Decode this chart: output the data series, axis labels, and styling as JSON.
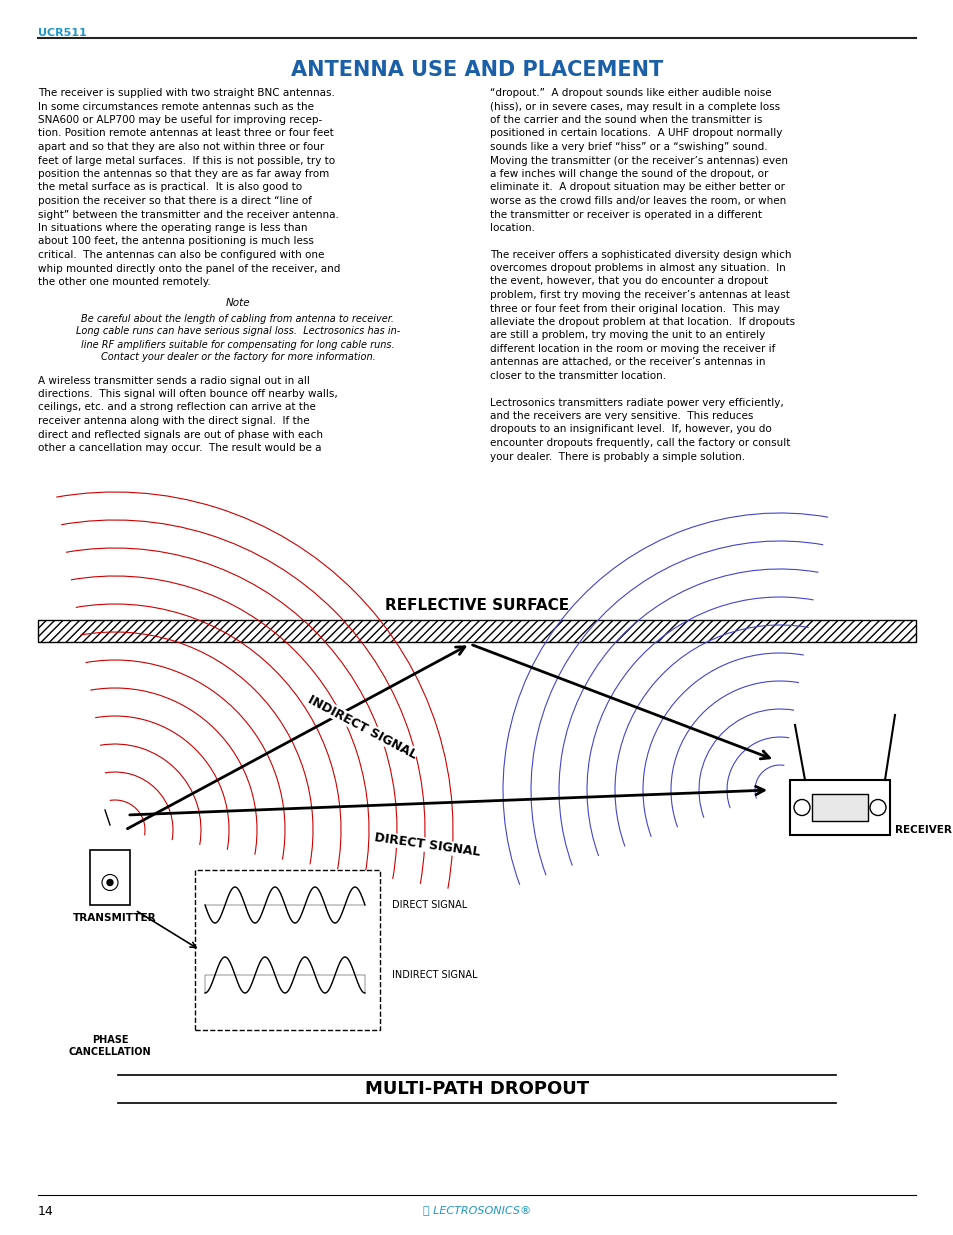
{
  "page_header": "UCR511",
  "title": "ANTENNA USE AND PLACEMENT",
  "header_color": "#2196C8",
  "title_color": "#1a5fa8",
  "body_color": "#000000",
  "background": "#ffffff",
  "left_col_text": [
    "The receiver is supplied with two straight BNC antennas.",
    "In some circumstances remote antennas such as the",
    "SNA600 or ALP700 may be useful for improving recep-",
    "tion. Position remote antennas at least three or four feet",
    "apart and so that they are also not within three or four",
    "feet of large metal surfaces.  If this is not possible, try to",
    "position the antennas so that they are as far away from",
    "the metal surface as is practical.  It is also good to",
    "position the receiver so that there is a direct “line of",
    "sight” between the transmitter and the receiver antenna.",
    "In situations where the operating range is less than",
    "about 100 feet, the antenna positioning is much less",
    "critical.  The antennas can also be configured with one",
    "whip mounted directly onto the panel of the receiver, and",
    "the other one mounted remotely."
  ],
  "note_title": "Note",
  "note_text": [
    "Be careful about the length of cabling from antenna to receiver.",
    "Long cable runs can have serious signal loss.  Lectrosonics has in-",
    "line RF amplifiers suitable for compensating for long cable runs.",
    "Contact your dealer or the factory for more information."
  ],
  "left_col_text2": [
    "A wireless transmitter sends a radio signal out in all",
    "directions.  This signal will often bounce off nearby walls,",
    "ceilings, etc. and a strong reflection can arrive at the",
    "receiver antenna along with the direct signal.  If the",
    "direct and reflected signals are out of phase with each",
    "other a cancellation may occur.  The result would be a"
  ],
  "right_col_text": [
    "“dropout.”  A dropout sounds like either audible noise",
    "(hiss), or in severe cases, may result in a complete loss",
    "of the carrier and the sound when the transmitter is",
    "positioned in certain locations.  A UHF dropout normally",
    "sounds like a very brief “hiss” or a “swishing” sound.",
    "Moving the transmitter (or the receiver’s antennas) even",
    "a few inches will change the sound of the dropout, or",
    "eliminate it.  A dropout situation may be either better or",
    "worse as the crowd fills and/or leaves the room, or when",
    "the transmitter or receiver is operated in a different",
    "location."
  ],
  "right_col_text2": [
    "The receiver offers a sophisticated diversity design which",
    "overcomes dropout problems in almost any situation.  In",
    "the event, however, that you do encounter a dropout",
    "problem, first try moving the receiver’s antennas at least",
    "three or four feet from their original location.  This may",
    "alleviate the dropout problem at that location.  If dropouts",
    "are still a problem, try moving the unit to an entirely",
    "different location in the room or moving the receiver if",
    "antennas are attached, or the receiver’s antennas in",
    "closer to the transmitter location."
  ],
  "right_col_text3": [
    "Lectrosonics transmitters radiate power very efficiently,",
    "and the receivers are very sensitive.  This reduces",
    "dropouts to an insignificant level.  If, however, you do",
    "encounter dropouts frequently, call the factory or consult",
    "your dealer.  There is probably a simple solution."
  ],
  "diagram_title": "REFLECTIVE SURFACE",
  "diagram_bottom_title": "MULTI-PATH DROPOUT",
  "label_indirect": "INDIRECT SIGNAL",
  "label_direct": "DIRECT SIGNAL",
  "label_receiver": "RECEIVER",
  "label_transmitter": "TRANSMITTER",
  "label_phase": "PHASE\nCANCELLATION",
  "label_direct_signal": "DIRECT SIGNAL",
  "label_indirect_signal": "INDIRECT SIGNAL",
  "page_number": "14"
}
